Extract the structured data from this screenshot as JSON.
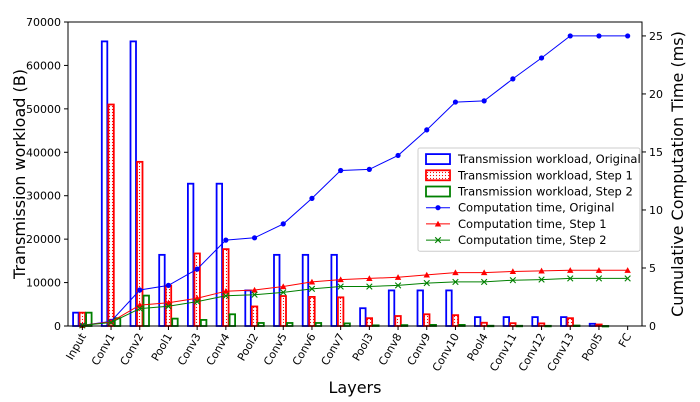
{
  "chart_data": {
    "type": "bar",
    "categories": [
      "Input",
      "Conv1",
      "Conv2",
      "Pool1",
      "Conv3",
      "Conv4",
      "Pool2",
      "Conv5",
      "Conv6",
      "Conv7",
      "Pool3",
      "Conv8",
      "Conv9",
      "Conv10",
      "Pool4",
      "Conv11",
      "Conv12",
      "Conv13",
      "Pool5",
      "FC"
    ],
    "xlabel": "Layers",
    "ylabel": "Transmission workload (B)",
    "y2label": "Cumulative Computation Time (ms)",
    "ylim": [
      0,
      70000
    ],
    "y2lim": [
      0,
      26.2
    ],
    "yticks": [
      0,
      10000,
      20000,
      30000,
      40000,
      50000,
      60000,
      70000
    ],
    "y2ticks": [
      0,
      5,
      10,
      15,
      20,
      25
    ],
    "legend_position": "center-right",
    "bar_series": [
      {
        "name": "Transmission workload, Original",
        "color": "#0000ff",
        "fill": "none",
        "values": [
          3072,
          65536,
          65536,
          16384,
          32768,
          32768,
          8192,
          16384,
          16384,
          16384,
          4096,
          8192,
          8192,
          8192,
          2048,
          2048,
          2048,
          2048,
          512,
          0
        ]
      },
      {
        "name": "Transmission workload, Step 1",
        "color": "#ff0000",
        "fill": "dotted",
        "values": [
          3072,
          51000,
          37800,
          9300,
          16700,
          17700,
          4500,
          6900,
          6700,
          6600,
          1800,
          2300,
          2700,
          2500,
          750,
          650,
          600,
          1800,
          350,
          0
        ]
      },
      {
        "name": "Transmission workload, Step 2",
        "color": "#008000",
        "fill": "none",
        "values": [
          3072,
          1800,
          7000,
          1700,
          1400,
          2700,
          700,
          700,
          700,
          600,
          150,
          200,
          250,
          250,
          60,
          50,
          40,
          100,
          10,
          0
        ]
      }
    ],
    "line_series": [
      {
        "name": "Computation time, Original",
        "color": "#0000ff",
        "marker": "circle",
        "values": [
          0.05,
          0.4,
          3.1,
          3.5,
          4.9,
          7.4,
          7.6,
          8.8,
          11.0,
          13.4,
          13.5,
          14.7,
          16.9,
          19.3,
          19.4,
          21.3,
          23.1,
          25.0,
          25.0,
          25.0
        ]
      },
      {
        "name": "Computation time, Step 1",
        "color": "#ff0000",
        "marker": "triangle",
        "values": [
          0.05,
          0.35,
          1.8,
          2.0,
          2.4,
          3.0,
          3.1,
          3.4,
          3.8,
          4.0,
          4.1,
          4.2,
          4.4,
          4.6,
          4.6,
          4.7,
          4.75,
          4.8,
          4.8,
          4.8
        ]
      },
      {
        "name": "Computation time, Step 2",
        "color": "#008000",
        "marker": "x",
        "values": [
          0.05,
          0.3,
          1.5,
          1.7,
          2.1,
          2.6,
          2.7,
          2.9,
          3.2,
          3.4,
          3.4,
          3.5,
          3.7,
          3.8,
          3.8,
          3.95,
          4.0,
          4.1,
          4.1,
          4.1
        ]
      }
    ]
  }
}
